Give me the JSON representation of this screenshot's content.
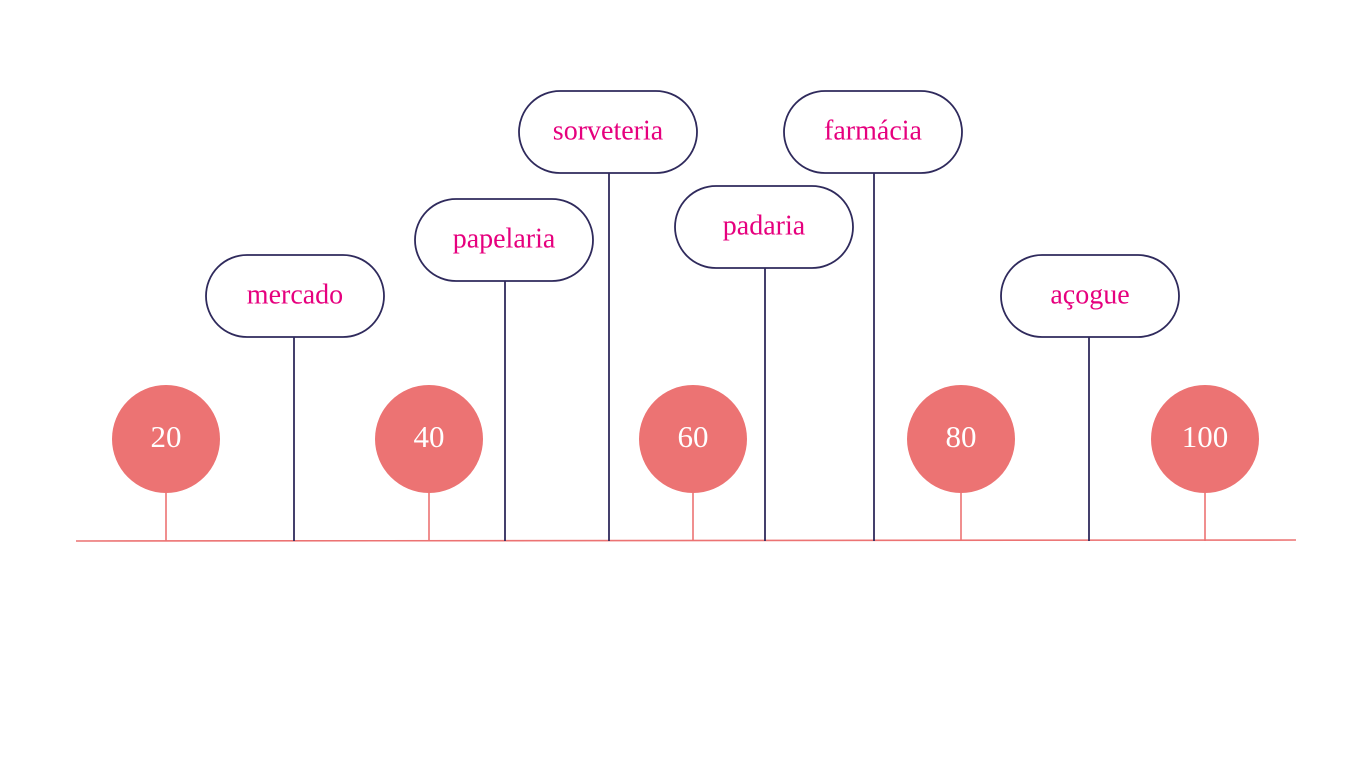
{
  "colors": {
    "axis": "#ec7373",
    "marker_fill": "#ec7373",
    "marker_text": "#ffffff",
    "place_border": "#2f2a5c",
    "place_text": "#e6007e"
  },
  "markers": [
    {
      "value": 20,
      "label": "20"
    },
    {
      "value": 40,
      "label": "40"
    },
    {
      "value": 60,
      "label": "60"
    },
    {
      "value": 80,
      "label": "80"
    },
    {
      "value": 100,
      "label": "100"
    }
  ],
  "places": [
    {
      "name": "mercado"
    },
    {
      "name": "papelaria"
    },
    {
      "name": "sorveteria"
    },
    {
      "name": "padaria"
    },
    {
      "name": "farmácia"
    },
    {
      "name": "açogue"
    }
  ]
}
